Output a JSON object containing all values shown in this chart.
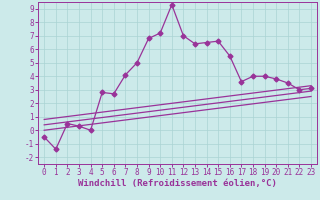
{
  "title": "",
  "xlabel": "Windchill (Refroidissement éolien,°C)",
  "ylabel": "",
  "background_color": "#cceaea",
  "line_color": "#993399",
  "xlim": [
    -0.5,
    23.5
  ],
  "ylim": [
    -2.5,
    9.5
  ],
  "xticks": [
    0,
    1,
    2,
    3,
    4,
    5,
    6,
    7,
    8,
    9,
    10,
    11,
    12,
    13,
    14,
    15,
    16,
    17,
    18,
    19,
    20,
    21,
    22,
    23
  ],
  "yticks": [
    -2,
    -1,
    0,
    1,
    2,
    3,
    4,
    5,
    6,
    7,
    8,
    9
  ],
  "main_x": [
    0,
    1,
    2,
    3,
    4,
    5,
    6,
    7,
    8,
    9,
    10,
    11,
    12,
    13,
    14,
    15,
    16,
    17,
    18,
    19,
    20,
    21,
    22,
    23
  ],
  "main_y": [
    -0.5,
    -1.4,
    0.5,
    0.3,
    0.0,
    2.8,
    2.7,
    4.1,
    5.0,
    6.8,
    7.2,
    9.3,
    7.0,
    6.4,
    6.5,
    6.6,
    5.5,
    3.6,
    4.0,
    4.0,
    3.8,
    3.5,
    3.0,
    3.1
  ],
  "line1_x": [
    0,
    23
  ],
  "line1_y": [
    0.8,
    3.3
  ],
  "line2_x": [
    0,
    23
  ],
  "line2_y": [
    0.4,
    2.9
  ],
  "line3_x": [
    0,
    23
  ],
  "line3_y": [
    0.0,
    2.5
  ],
  "grid_color": "#aad4d4",
  "marker": "D",
  "markersize": 2.5,
  "linewidth": 0.9,
  "xlabel_fontsize": 6.5,
  "tick_fontsize": 5.5
}
